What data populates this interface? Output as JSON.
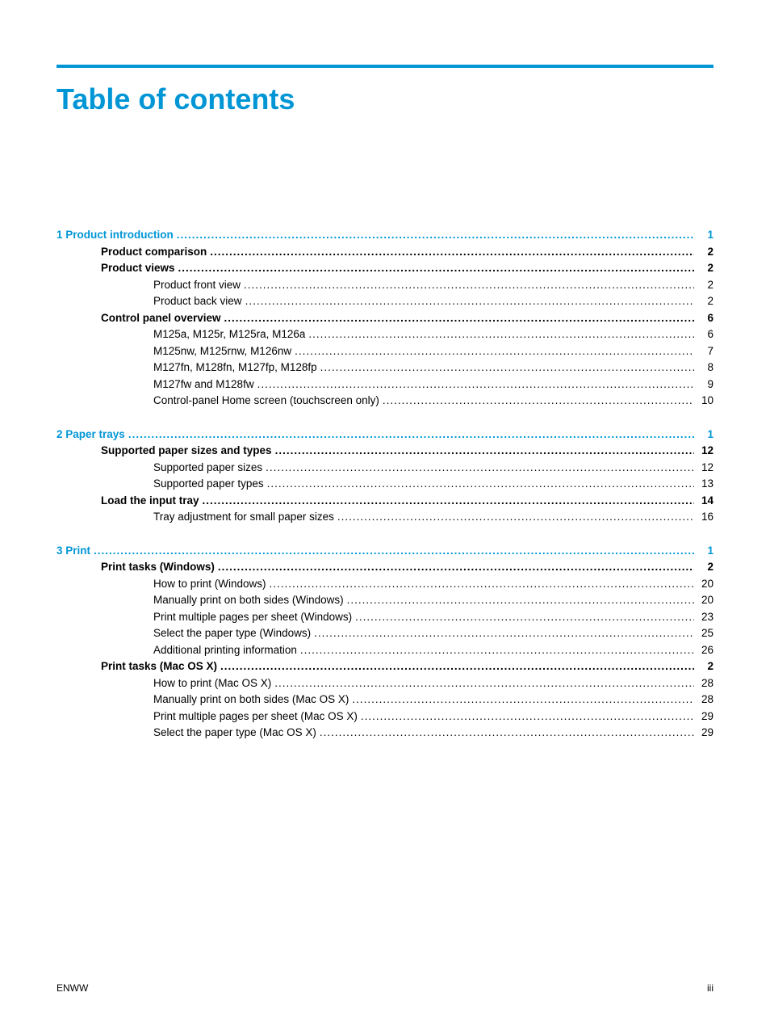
{
  "colors": {
    "accent": "#0096d6",
    "text": "#000000",
    "background": "#ffffff"
  },
  "typography": {
    "title_fontsize": 36,
    "body_fontsize": 13.5,
    "footer_fontsize": 12,
    "font_family": "Arial"
  },
  "title": "Table of contents",
  "footer": {
    "left": "ENWW",
    "right": "iii"
  },
  "sections": [
    {
      "number": "1",
      "title": "Product introduction",
      "page": "1",
      "items": [
        {
          "level": 1,
          "title": "Product comparison",
          "page": "2"
        },
        {
          "level": 1,
          "title": "Product views",
          "page": "2"
        },
        {
          "level": 2,
          "title": "Product front view",
          "page": "2"
        },
        {
          "level": 2,
          "title": "Product back view",
          "page": "2"
        },
        {
          "level": 1,
          "title": "Control panel overview",
          "page": "6"
        },
        {
          "level": 2,
          "title": "M125a, M125r, M125ra, M126a",
          "page": "6"
        },
        {
          "level": 2,
          "title": "M125nw, M125rnw, M126nw",
          "page": "7"
        },
        {
          "level": 2,
          "title": "M127fn, M128fn, M127fp, M128fp",
          "page": "8"
        },
        {
          "level": 2,
          "title": "M127fw and M128fw",
          "page": "9"
        },
        {
          "level": 2,
          "title": "Control-panel Home screen (touchscreen only)",
          "page": "10"
        }
      ]
    },
    {
      "number": "2",
      "title": "Paper trays",
      "page": "1",
      "items": [
        {
          "level": 1,
          "title": "Supported paper sizes and types",
          "page": "12"
        },
        {
          "level": 2,
          "title": "Supported paper sizes",
          "page": "12"
        },
        {
          "level": 2,
          "title": "Supported paper types",
          "page": "13"
        },
        {
          "level": 1,
          "title": "Load the input tray",
          "page": "14"
        },
        {
          "level": 2,
          "title": "Tray adjustment for small paper sizes",
          "page": "16"
        }
      ]
    },
    {
      "number": "3",
      "title": "Print",
      "page": "1",
      "items": [
        {
          "level": 1,
          "title": "Print tasks (Windows)",
          "page": "2"
        },
        {
          "level": 2,
          "title": "How to print (Windows)",
          "page": "20"
        },
        {
          "level": 2,
          "title": "Manually print on both sides (Windows)",
          "page": "20"
        },
        {
          "level": 2,
          "title": "Print multiple pages per sheet (Windows)",
          "page": "23"
        },
        {
          "level": 2,
          "title": "Select the paper type (Windows)",
          "page": "25"
        },
        {
          "level": 2,
          "title": "Additional printing information",
          "page": "26"
        },
        {
          "level": 1,
          "title": "Print tasks (Mac OS X)",
          "page": "2"
        },
        {
          "level": 2,
          "title": "How to print (Mac OS X)",
          "page": "28"
        },
        {
          "level": 2,
          "title": "Manually print on both sides (Mac OS X)",
          "page": "28"
        },
        {
          "level": 2,
          "title": "Print multiple pages per sheet (Mac OS X)",
          "page": "29"
        },
        {
          "level": 2,
          "title": "Select the paper type (Mac OS X)",
          "page": "29"
        }
      ]
    }
  ]
}
